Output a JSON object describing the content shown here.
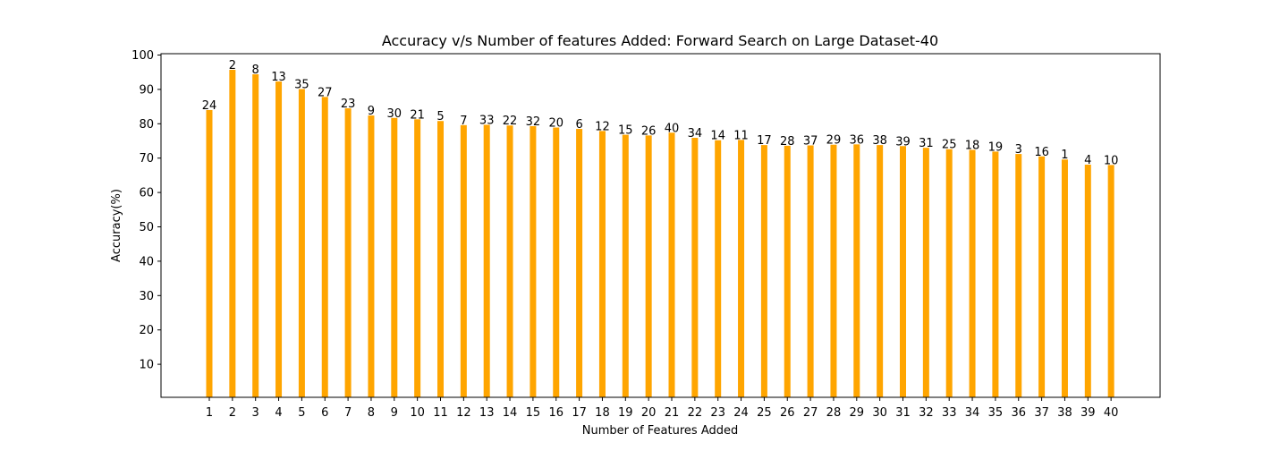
{
  "chart_data": {
    "type": "bar",
    "title": "Accuracy v/s Number of features Added: Forward Search on Large Dataset-40",
    "xlabel": "Number of Features Added",
    "ylabel": "Accuracy(%)",
    "categories": [
      "1",
      "2",
      "3",
      "4",
      "5",
      "6",
      "7",
      "8",
      "9",
      "10",
      "11",
      "12",
      "13",
      "14",
      "15",
      "16",
      "17",
      "18",
      "19",
      "20",
      "21",
      "22",
      "23",
      "24",
      "25",
      "26",
      "27",
      "28",
      "29",
      "30",
      "31",
      "32",
      "33",
      "34",
      "35",
      "36",
      "37",
      "38",
      "39",
      "40"
    ],
    "values": [
      84.0,
      95.7,
      94.4,
      92.3,
      90.1,
      87.8,
      84.5,
      82.4,
      81.7,
      81.3,
      80.8,
      79.6,
      79.7,
      79.5,
      79.3,
      78.9,
      78.5,
      77.9,
      76.8,
      76.6,
      77.4,
      75.9,
      75.2,
      75.3,
      73.8,
      73.6,
      73.7,
      73.9,
      74.0,
      73.8,
      73.5,
      73.0,
      72.6,
      72.4,
      71.9,
      71.2,
      70.5,
      69.6,
      68.1,
      68.0
    ],
    "data_labels": [
      "24",
      "2",
      "8",
      "13",
      "35",
      "27",
      "23",
      "9",
      "30",
      "21",
      "5",
      "7",
      "33",
      "22",
      "32",
      "20",
      "6",
      "12",
      "15",
      "26",
      "40",
      "34",
      "14",
      "11",
      "17",
      "28",
      "37",
      "29",
      "36",
      "38",
      "39",
      "31",
      "25",
      "18",
      "19",
      "3",
      "16",
      "1",
      "4",
      "10"
    ],
    "yticks": [
      10,
      20,
      30,
      40,
      50,
      60,
      70,
      80,
      90,
      100
    ],
    "ylim": [
      0,
      100
    ],
    "bar_color": "#ffa500",
    "grid": false,
    "legend": "none"
  }
}
